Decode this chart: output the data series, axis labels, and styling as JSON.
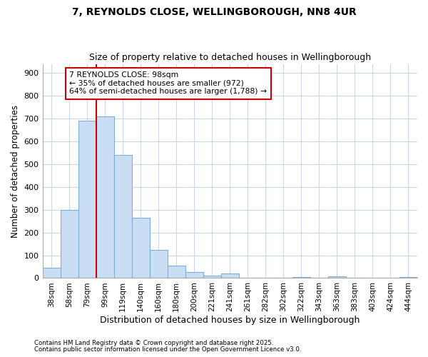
{
  "title1": "7, REYNOLDS CLOSE, WELLINGBOROUGH, NN8 4UR",
  "title2": "Size of property relative to detached houses in Wellingborough",
  "xlabel": "Distribution of detached houses by size in Wellingborough",
  "ylabel": "Number of detached properties",
  "bar_values": [
    45,
    300,
    690,
    710,
    540,
    265,
    125,
    55,
    28,
    12,
    20,
    3,
    0,
    0,
    5,
    0,
    8,
    0,
    0,
    0,
    5
  ],
  "bar_labels": [
    "38sqm",
    "58sqm",
    "79sqm",
    "99sqm",
    "119sqm",
    "140sqm",
    "160sqm",
    "180sqm",
    "200sqm",
    "221sqm",
    "241sqm",
    "261sqm",
    "282sqm",
    "302sqm",
    "322sqm",
    "343sqm",
    "363sqm",
    "383sqm",
    "403sqm",
    "424sqm",
    "444sqm"
  ],
  "bar_color": "#c9ddf5",
  "bar_edge_color": "#7bafd4",
  "grid_color": "#c8d8ee",
  "vline_x_idx": 3,
  "vline_color": "#cc0000",
  "annotation_text": "7 REYNOLDS CLOSE: 98sqm\n← 35% of detached houses are smaller (972)\n64% of semi-detached houses are larger (1,788) →",
  "annotation_box_color": "#cc0000",
  "annotation_bg": "#ffffff",
  "ylim": [
    0,
    940
  ],
  "yticks": [
    0,
    100,
    200,
    300,
    400,
    500,
    600,
    700,
    800,
    900
  ],
  "footer1": "Contains HM Land Registry data © Crown copyright and database right 2025.",
  "footer2": "Contains public sector information licensed under the Open Government Licence v3.0.",
  "bg_color": "#ffffff",
  "plot_bg_color": "#ffffff"
}
